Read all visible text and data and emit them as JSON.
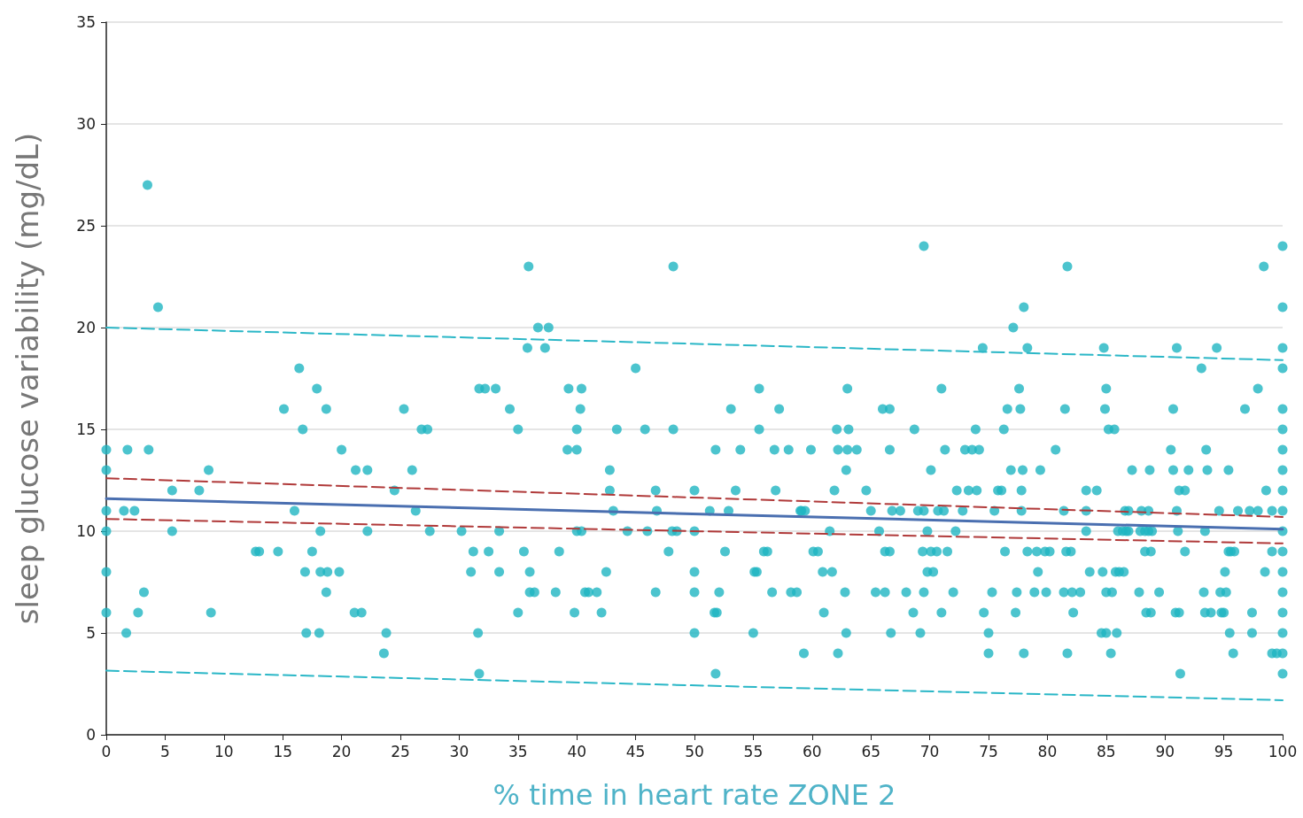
{
  "chart_data": {
    "type": "scatter",
    "xlabel": "% time in heart rate ZONE 2",
    "ylabel": "sleep glucose variability (mg/dL)",
    "xlim": [
      0,
      100
    ],
    "ylim": [
      0,
      35
    ],
    "xticks": [
      0,
      5,
      10,
      15,
      20,
      25,
      30,
      35,
      40,
      45,
      50,
      55,
      60,
      65,
      70,
      75,
      80,
      85,
      90,
      95,
      100
    ],
    "yticks": [
      0,
      5,
      10,
      15,
      20,
      25,
      30,
      35
    ],
    "grid": "y",
    "series": [
      {
        "marker": "circle",
        "color": "#1fb5c2",
        "x": [
          0,
          0,
          0,
          0,
          0,
          0,
          1.5,
          1.8,
          1.7,
          2.4,
          2.7,
          3.2,
          3.5,
          3.6,
          4.4,
          5.6,
          5.6,
          7.9,
          8.7,
          8.9,
          12.7,
          13,
          14.6,
          15.1,
          16,
          16.4,
          16.7,
          16.9,
          17,
          17.5,
          17.9,
          18.1,
          18.2,
          18.2,
          18.7,
          18.7,
          18.8,
          19.8,
          20,
          21.2,
          21.1,
          21.7,
          22.2,
          22.2,
          23.8,
          23.6,
          24.5,
          25.3,
          26,
          26.3,
          26.8,
          27.3,
          27.5,
          30.2,
          31,
          31.2,
          31.6,
          31.7,
          31.7,
          32.2,
          32.5,
          33.1,
          33.4,
          33.4,
          34.3,
          35,
          35,
          35.5,
          35.8,
          35.9,
          36,
          36,
          36.4,
          36.7,
          37.3,
          37.6,
          38.2,
          38.5,
          39.2,
          39.3,
          39.8,
          40,
          40,
          40,
          40.3,
          40.4,
          40.4,
          40.7,
          41,
          41.7,
          42.1,
          42.5,
          42.8,
          42.8,
          43.1,
          43.4,
          44.3,
          45,
          45.8,
          46,
          46.7,
          46.7,
          46.8,
          47.8,
          48.1,
          48.2,
          48.2,
          48.5,
          50,
          50,
          50,
          50,
          50,
          51.3,
          51.7,
          51.8,
          51.8,
          51.9,
          52.1,
          52.6,
          52.9,
          53.1,
          53.5,
          53.9,
          55,
          55.1,
          55.3,
          55.5,
          55.5,
          55.9,
          56.2,
          56.6,
          56.8,
          56.9,
          57.2,
          58,
          58.2,
          58.7,
          59,
          59.1,
          59.3,
          59.4,
          59.9,
          60.1,
          60.5,
          60.9,
          61,
          61.5,
          61.7,
          61.9,
          62.1,
          62.2,
          62.2,
          62.8,
          62.9,
          62.9,
          63,
          63,
          63.1,
          63.8,
          64.6,
          65,
          65.4,
          65.7,
          66,
          66.2,
          66.2,
          66.6,
          66.6,
          66.6,
          66.7,
          66.8,
          67.5,
          68,
          68.7,
          68.6,
          69,
          69.2,
          69.4,
          69.5,
          69.5,
          69.5,
          69.8,
          69.8,
          70.1,
          70.1,
          70.3,
          70.6,
          70.7,
          71,
          71,
          71.2,
          71.3,
          71.5,
          72,
          72.2,
          72.3,
          72.8,
          73,
          73.3,
          73.6,
          73.9,
          74,
          74.2,
          74.5,
          74.6,
          75,
          75,
          75.3,
          75.5,
          75.8,
          76.1,
          76.3,
          76.4,
          76.6,
          76.9,
          77.1,
          77.3,
          77.4,
          77.6,
          77.7,
          77.8,
          77.8,
          77.9,
          78,
          78,
          78.3,
          78.3,
          78.9,
          79.1,
          79.2,
          79.4,
          79.8,
          79.9,
          80.2,
          80.7,
          81.4,
          81.4,
          81.5,
          81.6,
          81.7,
          81.7,
          82,
          82.1,
          82.2,
          82.8,
          83.3,
          83.3,
          83.3,
          83.6,
          84.2,
          84.6,
          84.7,
          84.8,
          84.9,
          85,
          85,
          85,
          85.2,
          85.4,
          85.5,
          85.7,
          85.8,
          85.9,
          86,
          86.1,
          86.4,
          86.5,
          86.6,
          86.7,
          86.9,
          86.9,
          87.2,
          87.8,
          87.9,
          88,
          88.3,
          88.3,
          88.4,
          88.6,
          88.6,
          88.7,
          88.8,
          88.8,
          88.9,
          89.5,
          90.5,
          90.7,
          90.7,
          90.9,
          91,
          91,
          91.1,
          91.2,
          91.2,
          91.3,
          91.7,
          91.7,
          92,
          93.1,
          93.3,
          93.4,
          93.4,
          93.5,
          93.6,
          93.9,
          94.4,
          94.6,
          94.7,
          94.8,
          95,
          95.1,
          95.2,
          95.4,
          95.4,
          95.5,
          95.6,
          95.8,
          95.9,
          96.2,
          96.8,
          97.2,
          97.4,
          97.4,
          97.9,
          97.9,
          98.4,
          98.5,
          98.6,
          99.1,
          99.1,
          99.1,
          99.5,
          100,
          100,
          100,
          100,
          100,
          100,
          100,
          100,
          100,
          100,
          100,
          100,
          100,
          100,
          100,
          100,
          100,
          100
        ],
        "values": [
          14,
          13,
          11,
          10,
          8,
          6,
          11,
          14,
          5,
          11,
          6,
          7,
          27,
          14,
          21,
          12,
          10,
          12,
          13,
          6,
          9,
          9,
          9,
          16,
          11,
          18,
          15,
          8,
          5,
          9,
          17,
          5,
          10,
          8,
          7,
          16,
          8,
          8,
          14,
          13,
          6,
          6,
          13,
          10,
          5,
          4,
          12,
          16,
          13,
          11,
          15,
          15,
          10,
          10,
          8,
          9,
          5,
          3,
          17,
          17,
          9,
          17,
          10,
          8,
          16,
          15,
          6,
          9,
          19,
          23,
          8,
          7,
          7,
          20,
          19,
          20,
          7,
          9,
          14,
          17,
          6,
          14,
          15,
          10,
          16,
          17,
          10,
          7,
          7,
          7,
          6,
          8,
          13,
          12,
          11,
          15,
          10,
          18,
          15,
          10,
          7,
          12,
          11,
          9,
          10,
          23,
          15,
          10,
          12,
          10,
          8,
          7,
          5,
          11,
          6,
          14,
          3,
          6,
          7,
          9,
          11,
          16,
          12,
          14,
          5,
          8,
          8,
          17,
          15,
          9,
          9,
          7,
          14,
          12,
          16,
          14,
          7,
          7,
          11,
          11,
          4,
          11,
          14,
          9,
          9,
          8,
          6,
          10,
          8,
          12,
          15,
          14,
          4,
          7,
          13,
          5,
          14,
          17,
          15,
          14,
          12,
          11,
          7,
          10,
          16,
          7,
          9,
          16,
          9,
          14,
          5,
          11,
          11,
          7,
          15,
          6,
          11,
          5,
          9,
          7,
          24,
          11,
          10,
          8,
          13,
          9,
          8,
          9,
          11,
          17,
          6,
          11,
          14,
          9,
          7,
          10,
          12,
          11,
          14,
          12,
          14,
          15,
          12,
          14,
          19,
          6,
          5,
          4,
          7,
          11,
          12,
          12,
          15,
          9,
          16,
          13,
          20,
          6,
          7,
          17,
          16,
          12,
          11,
          13,
          21,
          4,
          19,
          9,
          7,
          9,
          8,
          13,
          9,
          7,
          9,
          14,
          7,
          11,
          16,
          9,
          4,
          23,
          9,
          7,
          6,
          7,
          12,
          11,
          10,
          8,
          12,
          5,
          8,
          19,
          16,
          17,
          5,
          7,
          15,
          4,
          7,
          15,
          8,
          5,
          10,
          8,
          10,
          8,
          11,
          10,
          10,
          11,
          13,
          7,
          10,
          11,
          9,
          10,
          6,
          11,
          10,
          13,
          6,
          9,
          10,
          7,
          14,
          16,
          13,
          6,
          19,
          11,
          10,
          6,
          12,
          3,
          12,
          9,
          13,
          18,
          7,
          10,
          6,
          14,
          13,
          6,
          19,
          11,
          7,
          6,
          6,
          8,
          7,
          13,
          9,
          5,
          9,
          4,
          9,
          11,
          16,
          11,
          5,
          6,
          11,
          17,
          23,
          8,
          12,
          4,
          9,
          11,
          4,
          24,
          21,
          19,
          18,
          16,
          15,
          14,
          13,
          12,
          11,
          10,
          9,
          8,
          7,
          6,
          5,
          4,
          3
        ]
      },
      {
        "type": "line",
        "marker": "none",
        "color": "#2bb7c7",
        "line_style": "dashed",
        "x": [
          0,
          100
        ],
        "values": [
          20,
          18.4
        ]
      },
      {
        "type": "line",
        "marker": "none",
        "color": "#2bb7c7",
        "line_style": "dashed",
        "x": [
          0,
          100
        ],
        "values": [
          3.15,
          1.7
        ]
      },
      {
        "type": "line",
        "marker": "none",
        "color": "#b03a3a",
        "line_style": "dashed",
        "x": [
          0,
          100
        ],
        "values": [
          12.6,
          10.7
        ]
      },
      {
        "type": "line",
        "marker": "none",
        "color": "#b03a3a",
        "line_style": "dashed",
        "x": [
          0,
          100
        ],
        "values": [
          10.6,
          9.4
        ]
      },
      {
        "type": "line",
        "marker": "none",
        "color": "#4a6fb0",
        "line_style": "solid",
        "x": [
          0,
          100
        ],
        "values": [
          11.6,
          10.1
        ]
      }
    ]
  }
}
